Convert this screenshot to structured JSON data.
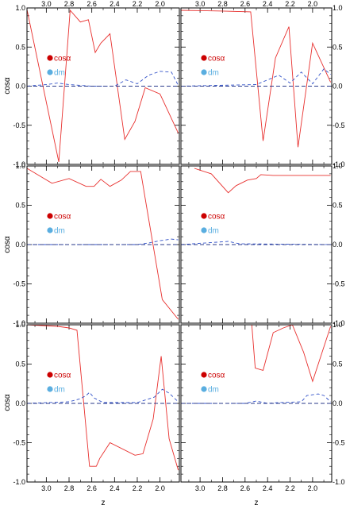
{
  "figure": {
    "ylabel": "cosα",
    "xlabel": "z",
    "x_reversed": true,
    "xlim": [
      3.17,
      1.83
    ],
    "ylim": [
      -1.0,
      1.0
    ],
    "x_ticks": [
      3.0,
      2.8,
      2.6,
      2.4,
      2.2,
      2.0
    ],
    "x_tick_labels": [
      "3.0",
      "2.8",
      "2.6",
      "2.4",
      "2.2",
      "2.0"
    ],
    "y_ticks": [
      -1.0,
      -0.5,
      0.0,
      0.5,
      1.0
    ],
    "y_tick_labels": [
      "-1.0",
      "-0.5",
      "0.0",
      "0.5",
      "1.0"
    ],
    "legend": [
      {
        "label": "cosα",
        "color": "#cc0000",
        "marker": "filled-circle"
      },
      {
        "label": "dm",
        "color": "#5aaee0",
        "marker": "filled-circle"
      }
    ],
    "colors": {
      "cos": "#e8302e",
      "dm": "#3050c8",
      "zero_line": "#2a3a8a",
      "legend_cos": "#cc0000",
      "legend_dm": "#5aaee0"
    }
  },
  "chart_data": [
    {
      "type": "line",
      "panel": "top-left",
      "xlim": [
        3.17,
        1.83
      ],
      "ylim": [
        -1.0,
        1.0
      ],
      "series": [
        {
          "name": "cosα",
          "style": "solid",
          "x": [
            3.17,
            2.89,
            2.79,
            2.7,
            2.63,
            2.57,
            2.52,
            2.44,
            2.31,
            2.22,
            2.13,
            2.0,
            1.84
          ],
          "y": [
            0.98,
            -0.97,
            0.97,
            0.82,
            0.85,
            0.43,
            0.55,
            0.67,
            -0.68,
            -0.45,
            -0.02,
            -0.1,
            -0.6
          ]
        },
        {
          "name": "dm",
          "style": "dashed",
          "x": [
            3.17,
            3.0,
            2.9,
            2.8,
            2.6,
            2.4,
            2.3,
            2.2,
            2.1,
            2.0,
            1.9,
            1.84
          ],
          "y": [
            0.0,
            0.02,
            0.04,
            0.02,
            0.0,
            0.0,
            0.08,
            0.03,
            0.14,
            0.19,
            0.18,
            0.01
          ]
        },
        {
          "name": "zero",
          "style": "dashed",
          "x": [
            3.17,
            1.83
          ],
          "y": [
            0.0,
            0.0
          ]
        }
      ]
    },
    {
      "type": "line",
      "panel": "top-right",
      "xlim": [
        3.17,
        1.83
      ],
      "ylim": [
        -1.0,
        1.0
      ],
      "series": [
        {
          "name": "cosα",
          "style": "solid",
          "x": [
            3.17,
            2.8,
            2.55,
            2.44,
            2.33,
            2.21,
            2.13,
            2.0,
            1.84
          ],
          "y": [
            0.97,
            0.96,
            0.95,
            -0.7,
            0.36,
            0.76,
            -0.78,
            0.55,
            0.05
          ]
        },
        {
          "name": "dm",
          "style": "dashed",
          "x": [
            3.17,
            2.5,
            2.3,
            2.2,
            2.1,
            2.0,
            1.9,
            1.84
          ],
          "y": [
            0.0,
            0.02,
            0.14,
            0.04,
            0.18,
            0.03,
            0.22,
            0.15
          ]
        },
        {
          "name": "zero",
          "style": "dashed",
          "x": [
            3.17,
            1.83
          ],
          "y": [
            0.0,
            0.0
          ]
        }
      ]
    },
    {
      "type": "line",
      "panel": "middle-left",
      "xlim": [
        3.17,
        1.83
      ],
      "ylim": [
        -1.0,
        1.0
      ],
      "series": [
        {
          "name": "cosα",
          "style": "solid",
          "x": [
            3.17,
            2.95,
            2.8,
            2.65,
            2.58,
            2.52,
            2.44,
            2.34,
            2.26,
            2.17,
            2.12,
            2.05,
            1.98,
            1.84
          ],
          "y": [
            0.97,
            0.78,
            0.84,
            0.74,
            0.74,
            0.83,
            0.74,
            0.82,
            0.93,
            0.93,
            0.5,
            -0.1,
            -0.7,
            -0.95
          ]
        },
        {
          "name": "dm",
          "style": "dashed",
          "x": [
            3.17,
            2.2,
            2.1,
            2.0,
            1.9,
            1.84
          ],
          "y": [
            0.0,
            0.0,
            0.02,
            0.05,
            0.07,
            0.06
          ]
        },
        {
          "name": "zero",
          "style": "dashed",
          "x": [
            3.17,
            1.83
          ],
          "y": [
            0.0,
            0.0
          ]
        }
      ]
    },
    {
      "type": "line",
      "panel": "middle-right",
      "xlim": [
        3.17,
        1.83
      ],
      "ylim": [
        -1.0,
        1.0
      ],
      "series": [
        {
          "name": "cosα",
          "style": "solid",
          "x": [
            3.05,
            2.9,
            2.75,
            2.68,
            2.58,
            2.5,
            2.46,
            2.35,
            2.2,
            1.84
          ],
          "y": [
            0.97,
            0.9,
            0.66,
            0.75,
            0.82,
            0.84,
            0.89,
            0.88,
            0.88,
            0.88
          ]
        },
        {
          "name": "dm",
          "style": "dashed",
          "x": [
            3.17,
            2.85,
            2.75,
            2.65,
            1.84
          ],
          "y": [
            0.0,
            0.03,
            0.04,
            0.01,
            0.0
          ]
        },
        {
          "name": "zero",
          "style": "dashed",
          "x": [
            3.17,
            1.83
          ],
          "y": [
            0.0,
            0.0
          ]
        }
      ]
    },
    {
      "type": "line",
      "panel": "bottom-left",
      "xlim": [
        3.17,
        1.83
      ],
      "ylim": [
        -1.0,
        1.0
      ],
      "series": [
        {
          "name": "cosα",
          "style": "solid",
          "x": [
            3.17,
            2.9,
            2.8,
            2.73,
            2.62,
            2.56,
            2.53,
            2.44,
            2.22,
            2.15,
            2.06,
            1.99,
            1.92,
            1.84
          ],
          "y": [
            1.0,
            0.98,
            0.96,
            0.93,
            -0.8,
            -0.8,
            -0.7,
            -0.5,
            -0.66,
            -0.64,
            -0.2,
            0.6,
            -0.45,
            -0.85
          ]
        },
        {
          "name": "dm",
          "style": "dashed",
          "x": [
            3.17,
            2.8,
            2.7,
            2.65,
            2.62,
            2.58,
            2.5,
            2.2,
            2.05,
            1.98,
            1.92,
            1.84
          ],
          "y": [
            0.0,
            0.02,
            0.06,
            0.1,
            0.14,
            0.07,
            0.01,
            0.01,
            0.08,
            0.18,
            0.13,
            0.02
          ]
        },
        {
          "name": "zero",
          "style": "dashed",
          "x": [
            3.17,
            1.83
          ],
          "y": [
            0.0,
            0.0
          ]
        }
      ]
    },
    {
      "type": "line",
      "panel": "bottom-right",
      "xlim": [
        3.17,
        1.83
      ],
      "ylim": [
        -1.0,
        1.0
      ],
      "series": [
        {
          "name": "cosα",
          "style": "solid",
          "x": [
            2.54,
            2.51,
            2.44,
            2.35,
            2.26,
            2.18,
            2.08,
            2.0,
            1.84
          ],
          "y": [
            1.0,
            0.45,
            0.42,
            0.9,
            0.96,
            1.0,
            0.65,
            0.28,
            0.98
          ]
        },
        {
          "name": "dm",
          "style": "dashed",
          "x": [
            3.17,
            2.6,
            2.5,
            2.4,
            2.3,
            2.1,
            2.05,
            1.95,
            1.9,
            1.84
          ],
          "y": [
            0.0,
            0.0,
            0.03,
            0.0,
            0.01,
            0.02,
            0.1,
            0.12,
            0.1,
            0.02
          ]
        },
        {
          "name": "zero",
          "style": "dashed",
          "x": [
            3.17,
            1.83
          ],
          "y": [
            0.0,
            0.0
          ]
        }
      ]
    }
  ]
}
